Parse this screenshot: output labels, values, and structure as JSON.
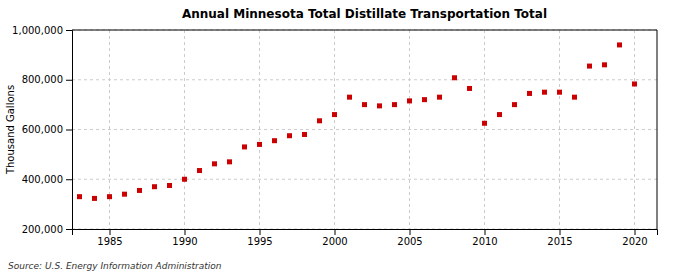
{
  "chart_data": {
    "type": "scatter",
    "title": "Annual Minnesota Total Distillate Transportation Total",
    "ylabel": "Thousand Gallons",
    "annotation": "Source: U.S. Energy Information Administration",
    "color": "#cc0000",
    "marker": "square",
    "grid": true,
    "x": [
      1983,
      1984,
      1985,
      1986,
      1987,
      1988,
      1989,
      1990,
      1991,
      1992,
      1993,
      1994,
      1995,
      1996,
      1997,
      1998,
      1999,
      2000,
      2001,
      2002,
      2003,
      2004,
      2005,
      2006,
      2007,
      2008,
      2009,
      2010,
      2011,
      2012,
      2013,
      2014,
      2015,
      2016,
      2017,
      2018,
      2019,
      2020
    ],
    "values": [
      330000,
      323000,
      330000,
      340000,
      355000,
      370000,
      375000,
      400000,
      435000,
      462000,
      470000,
      530000,
      540000,
      555000,
      575000,
      580000,
      635000,
      660000,
      730000,
      700000,
      695000,
      700000,
      715000,
      720000,
      730000,
      808000,
      765000,
      625000,
      660000,
      700000,
      745000,
      750000,
      750000,
      730000,
      855000,
      860000,
      940000,
      783000
    ],
    "xlim": [
      1982.5,
      2021.5
    ],
    "xticks": [
      1985,
      1990,
      1995,
      2000,
      2005,
      2010,
      2015,
      2020
    ],
    "ylim": [
      200000,
      1000000
    ],
    "yticks": [
      {
        "value": 200000,
        "label": "200,000"
      },
      {
        "value": 400000,
        "label": "400,000"
      },
      {
        "value": 600000,
        "label": "600,000"
      },
      {
        "value": 800000,
        "label": "800,000"
      },
      {
        "value": 1000000,
        "label": "1,000,000"
      }
    ]
  }
}
